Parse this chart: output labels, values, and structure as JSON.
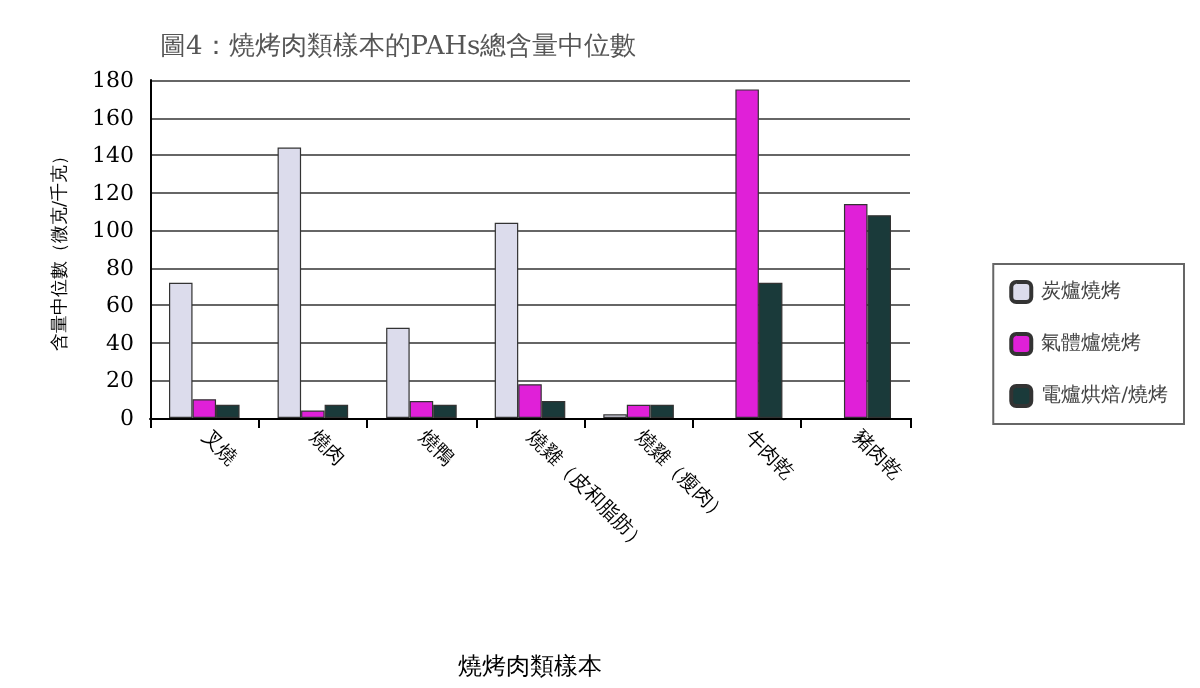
{
  "chart_data": {
    "type": "bar",
    "title": "圖4：燒烤肉類樣本的PAHs總含量中位數",
    "xlabel": "燒烤肉類樣本",
    "ylabel": "含量中位數（微克/千克）",
    "categories": [
      "叉燒",
      "燒肉",
      "燒鴨",
      "燒雞（皮和脂肪）",
      "燒雞（瘦肉）",
      "牛肉乾",
      "豬肉乾"
    ],
    "series": [
      {
        "name": "炭爐燒烤",
        "color": "#dcdcec",
        "values": [
          72,
          144,
          48,
          104,
          2,
          null,
          null
        ]
      },
      {
        "name": "氣體爐燒烤",
        "color": "#e020d8",
        "values": [
          10,
          4,
          9,
          18,
          7,
          175,
          114
        ]
      },
      {
        "name": "電爐烘焙/燒烤",
        "color": "#1a3a3a",
        "values": [
          7,
          7,
          7,
          9,
          7,
          72,
          108
        ]
      }
    ],
    "ylim": [
      0,
      180
    ],
    "yticks": [
      0,
      20,
      40,
      60,
      80,
      100,
      120,
      140,
      160,
      180
    ],
    "grid": "y",
    "legend": "right"
  }
}
